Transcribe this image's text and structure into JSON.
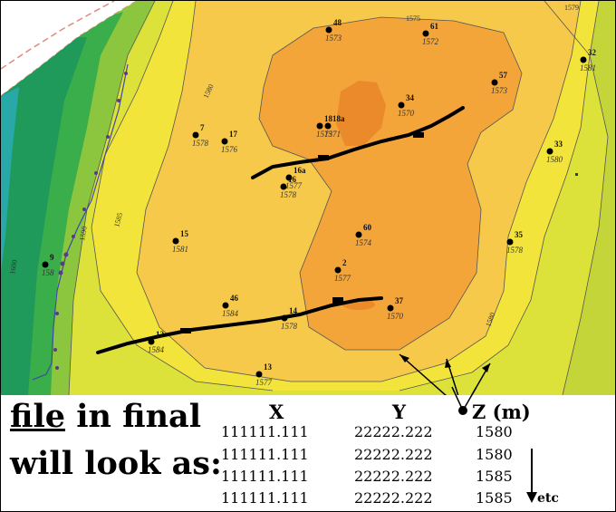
{
  "map": {
    "wells": [
      {
        "id": "48",
        "value": "1573"
      },
      {
        "id": "61",
        "value": "1572"
      },
      {
        "id": "32",
        "value": "1581"
      },
      {
        "id": "57",
        "value": "1573"
      },
      {
        "id": "34",
        "value": "1570"
      },
      {
        "id": "18",
        "value": "1573"
      },
      {
        "id": "18a",
        "value": "1571"
      },
      {
        "id": "7",
        "value": "1578"
      },
      {
        "id": "17",
        "value": "1576"
      },
      {
        "id": "33",
        "value": "1580"
      },
      {
        "id": "16",
        "value": "1578"
      },
      {
        "id": "16a",
        "value": "1577"
      },
      {
        "id": "15",
        "value": "1581"
      },
      {
        "id": "60",
        "value": "1574"
      },
      {
        "id": "35",
        "value": "1578"
      },
      {
        "id": "9",
        "value": "158"
      },
      {
        "id": "2",
        "value": "1577"
      },
      {
        "id": "46",
        "value": "1584"
      },
      {
        "id": "14",
        "value": "1578"
      },
      {
        "id": "37",
        "value": "1570"
      },
      {
        "id": "12",
        "value": "1584"
      },
      {
        "id": "13",
        "value": "1577"
      }
    ],
    "contour_labels": [
      "1575",
      "1579",
      "1580",
      "1585",
      "1590",
      "1600",
      "1580"
    ]
  },
  "caption": {
    "line1_underlined": "file",
    "line1_rest": " in final",
    "line2": "will look as:"
  },
  "table": {
    "headers": {
      "x": "X",
      "y": "Y",
      "z": "Z (m)"
    },
    "rows": [
      {
        "x": "111111.111",
        "y": "22222.222",
        "z": "1580"
      },
      {
        "x": "111111.111",
        "y": "22222.222",
        "z": "1580"
      },
      {
        "x": "111111.111",
        "y": "22222.222",
        "z": "1585"
      },
      {
        "x": "111111.111",
        "y": "22222.222",
        "z": "1585"
      }
    ],
    "etc_label": "etc"
  }
}
